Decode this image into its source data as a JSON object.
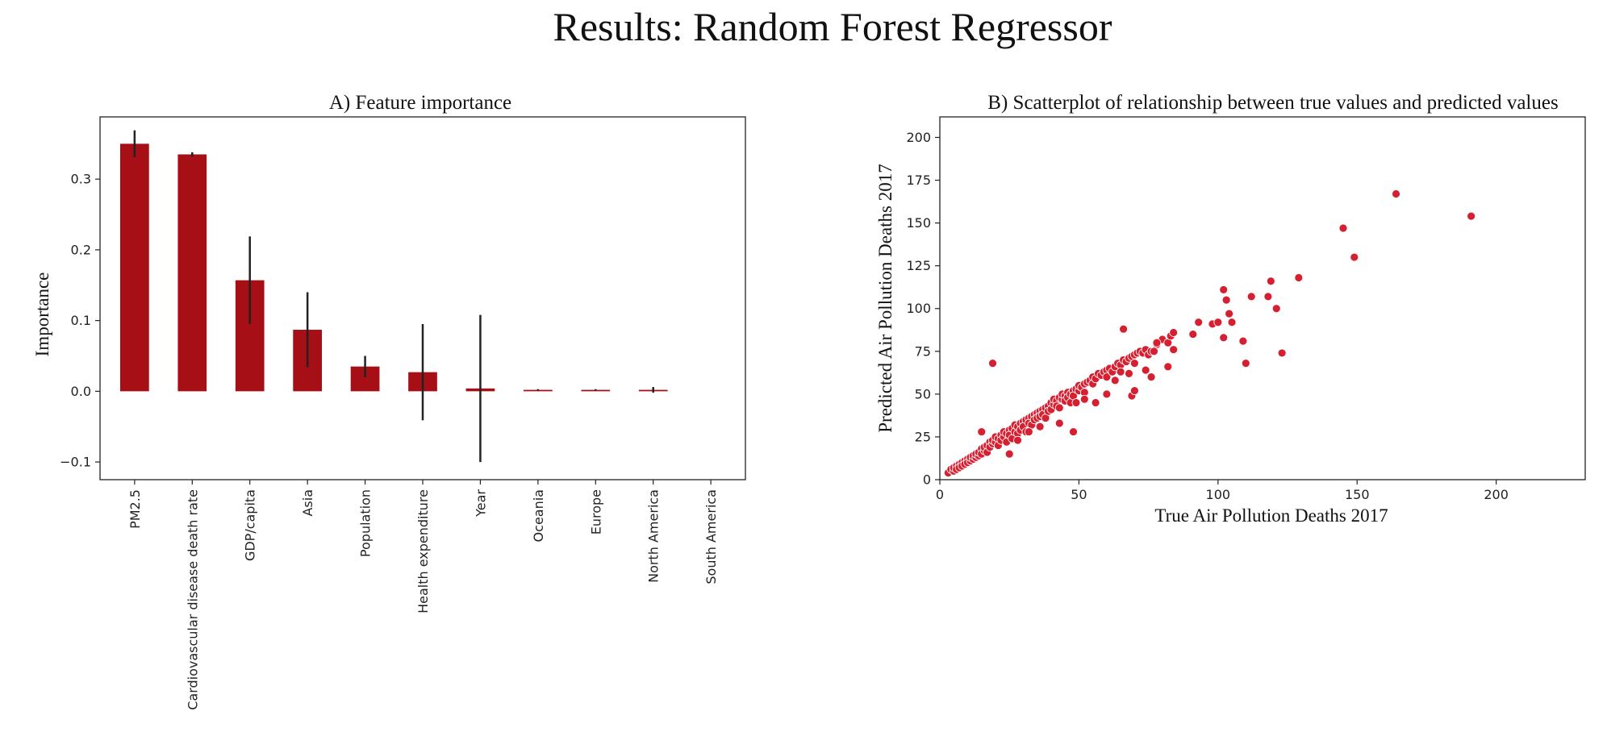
{
  "figure": {
    "title": "Results: Random Forest Regressor"
  },
  "chart_data": [
    {
      "type": "bar",
      "title": "A) Feature importance",
      "xlabel": "",
      "ylabel": "Importance",
      "categories": [
        "PM2.5",
        "Cardiovascular disease death rate",
        "GDP/capita",
        "Asia",
        "Population",
        "Health expenditure",
        "Year",
        "Oceania",
        "Europe",
        "North America",
        "South America"
      ],
      "values": [
        0.35,
        0.335,
        0.157,
        0.087,
        0.035,
        0.027,
        0.004,
        0.002,
        0.002,
        0.002,
        0.0
      ],
      "error": [
        0.019,
        0.003,
        0.062,
        0.053,
        0.015,
        0.068,
        0.104,
        0.001,
        0.001,
        0.004,
        0.0
      ],
      "ylim": [
        -0.125,
        0.388
      ],
      "yticks": [
        -0.1,
        0.0,
        0.1,
        0.2,
        0.3
      ],
      "ytick_labels": [
        "−0.1",
        "0.0",
        "0.1",
        "0.2",
        "0.3"
      ],
      "bar_color": "#a50f15",
      "error_color": "#222222",
      "grid": false
    },
    {
      "type": "scatter",
      "title": "B) Scatterplot of relationship between true values and predicted values",
      "xlabel": "True Air Pollution Deaths 2017",
      "ylabel": "Predicted Air Pollution Deaths 2017",
      "xlim": [
        0,
        232
      ],
      "ylim": [
        0,
        212
      ],
      "xticks": [
        0,
        50,
        100,
        150,
        200
      ],
      "yticks": [
        0,
        25,
        50,
        75,
        100,
        125,
        150,
        175,
        200
      ],
      "point_color": "#d62031",
      "grid": false,
      "points": [
        [
          3,
          4
        ],
        [
          4,
          6
        ],
        [
          5,
          5
        ],
        [
          5,
          7
        ],
        [
          6,
          8
        ],
        [
          6,
          6
        ],
        [
          7,
          9
        ],
        [
          7,
          7
        ],
        [
          8,
          10
        ],
        [
          8,
          8
        ],
        [
          9,
          11
        ],
        [
          9,
          9
        ],
        [
          10,
          12
        ],
        [
          10,
          10
        ],
        [
          11,
          11
        ],
        [
          11,
          13
        ],
        [
          12,
          12
        ],
        [
          12,
          14
        ],
        [
          13,
          13
        ],
        [
          13,
          15
        ],
        [
          14,
          14
        ],
        [
          14,
          16
        ],
        [
          15,
          18
        ],
        [
          15,
          15
        ],
        [
          16,
          17
        ],
        [
          16,
          19
        ],
        [
          17,
          20
        ],
        [
          17,
          16
        ],
        [
          18,
          22
        ],
        [
          18,
          19
        ],
        [
          19,
          21
        ],
        [
          19,
          23
        ],
        [
          20,
          22
        ],
        [
          20,
          25
        ],
        [
          21,
          24
        ],
        [
          21,
          20
        ],
        [
          22,
          26
        ],
        [
          22,
          23
        ],
        [
          23,
          25
        ],
        [
          23,
          28
        ],
        [
          24,
          27
        ],
        [
          24,
          22
        ],
        [
          25,
          29
        ],
        [
          25,
          26
        ],
        [
          26,
          30
        ],
        [
          26,
          24
        ],
        [
          27,
          28
        ],
        [
          27,
          32
        ],
        [
          28,
          31
        ],
        [
          28,
          27
        ],
        [
          29,
          33
        ],
        [
          29,
          29
        ],
        [
          30,
          34
        ],
        [
          30,
          31
        ],
        [
          31,
          35
        ],
        [
          31,
          28
        ],
        [
          32,
          36
        ],
        [
          32,
          33
        ],
        [
          33,
          37
        ],
        [
          33,
          32
        ],
        [
          34,
          38
        ],
        [
          34,
          35
        ],
        [
          35,
          39
        ],
        [
          35,
          36
        ],
        [
          36,
          40
        ],
        [
          36,
          37
        ],
        [
          37,
          41
        ],
        [
          37,
          38
        ],
        [
          38,
          42
        ],
        [
          38,
          36
        ],
        [
          39,
          43
        ],
        [
          39,
          40
        ],
        [
          40,
          45
        ],
        [
          40,
          41
        ],
        [
          41,
          44
        ],
        [
          41,
          47
        ],
        [
          42,
          46
        ],
        [
          42,
          43
        ],
        [
          43,
          48
        ],
        [
          43,
          42
        ],
        [
          44,
          47
        ],
        [
          44,
          50
        ],
        [
          45,
          49
        ],
        [
          45,
          46
        ],
        [
          46,
          51
        ],
        [
          46,
          48
        ],
        [
          47,
          50
        ],
        [
          47,
          45
        ],
        [
          48,
          52
        ],
        [
          48,
          49
        ],
        [
          49,
          53
        ],
        [
          50,
          52
        ],
        [
          50,
          55
        ],
        [
          51,
          54
        ],
        [
          52,
          56
        ],
        [
          52,
          51
        ],
        [
          53,
          57
        ],
        [
          54,
          58
        ],
        [
          55,
          60
        ],
        [
          55,
          56
        ],
        [
          56,
          59
        ],
        [
          57,
          62
        ],
        [
          58,
          61
        ],
        [
          59,
          63
        ],
        [
          60,
          64
        ],
        [
          60,
          60
        ],
        [
          61,
          65
        ],
        [
          62,
          63
        ],
        [
          63,
          66
        ],
        [
          64,
          68
        ],
        [
          65,
          67
        ],
        [
          65,
          63
        ],
        [
          66,
          70
        ],
        [
          67,
          69
        ],
        [
          68,
          71
        ],
        [
          69,
          72
        ],
        [
          70,
          73
        ],
        [
          70,
          68
        ],
        [
          71,
          74
        ],
        [
          72,
          75
        ],
        [
          73,
          74
        ],
        [
          74,
          76
        ],
        [
          75,
          73
        ],
        [
          76,
          75
        ],
        [
          78,
          79
        ],
        [
          80,
          82
        ],
        [
          82,
          80
        ],
        [
          83,
          84
        ],
        [
          84,
          86
        ],
        [
          19,
          68
        ],
        [
          15,
          28
        ],
        [
          25,
          15
        ],
        [
          28,
          23
        ],
        [
          32,
          28
        ],
        [
          36,
          31
        ],
        [
          43,
          33
        ],
        [
          48,
          28
        ],
        [
          49,
          45
        ],
        [
          52,
          47
        ],
        [
          56,
          45
        ],
        [
          60,
          50
        ],
        [
          63,
          58
        ],
        [
          66,
          88
        ],
        [
          68,
          62
        ],
        [
          69,
          49
        ],
        [
          70,
          52
        ],
        [
          74,
          64
        ],
        [
          76,
          60
        ],
        [
          77,
          75
        ],
        [
          78,
          80
        ],
        [
          82,
          66
        ],
        [
          84,
          76
        ],
        [
          91,
          85
        ],
        [
          93,
          92
        ],
        [
          98,
          91
        ],
        [
          100,
          92
        ],
        [
          102,
          83
        ],
        [
          102,
          111
        ],
        [
          103,
          105
        ],
        [
          104,
          97
        ],
        [
          105,
          92
        ],
        [
          109,
          81
        ],
        [
          110,
          68
        ],
        [
          112,
          107
        ],
        [
          118,
          107
        ],
        [
          119,
          116
        ],
        [
          121,
          100
        ],
        [
          123,
          74
        ],
        [
          129,
          118
        ],
        [
          145,
          147
        ],
        [
          149,
          130
        ],
        [
          164,
          167
        ],
        [
          191,
          154
        ]
      ]
    }
  ]
}
